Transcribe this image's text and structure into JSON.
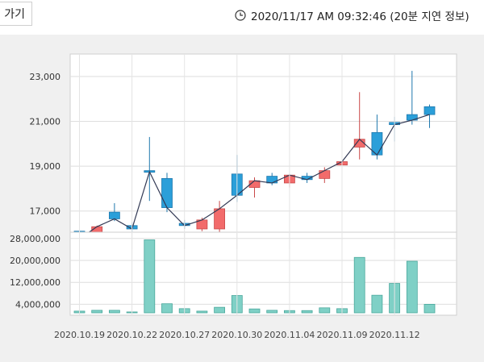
{
  "header": {
    "back_label": "가기",
    "timestamp": "2020/11/17 AM 09:32:46 (20분 지연 정보)"
  },
  "chart_data": [
    {
      "type": "candlestick",
      "title": "",
      "ylim": [
        15300,
        24000
      ],
      "yticks": [
        "17,000",
        "19,000",
        "21,000",
        "23,000"
      ],
      "ytick_values": [
        17000,
        19000,
        21000,
        23000
      ],
      "grid": true,
      "colors": {
        "up": "#f26b6b",
        "down": "#2b9fd9",
        "line": "#333a55"
      },
      "candles": [
        {
          "open": 16100,
          "close": 15750,
          "high": 16250,
          "low": 15500
        },
        {
          "open": 15400,
          "close": 16300,
          "high": 16350,
          "low": 15350
        },
        {
          "open": 16950,
          "close": 16650,
          "high": 17350,
          "low": 16550
        },
        {
          "open": 16350,
          "close": 16200,
          "high": 16500,
          "low": 16000
        },
        {
          "open": 18800,
          "close": 18750,
          "high": 20300,
          "low": 17450
        },
        {
          "open": 18450,
          "close": 17150,
          "high": 18700,
          "low": 16950
        },
        {
          "open": 16450,
          "close": 16350,
          "high": 16600,
          "low": 16200
        },
        {
          "open": 16200,
          "close": 16600,
          "high": 16700,
          "low": 16100
        },
        {
          "open": 16200,
          "close": 17100,
          "high": 17450,
          "low": 16000
        },
        {
          "open": 18650,
          "close": 17700,
          "high": 19500,
          "low": 17400
        },
        {
          "open": 18050,
          "close": 18350,
          "high": 18500,
          "low": 17600
        },
        {
          "open": 18550,
          "close": 18250,
          "high": 18700,
          "low": 18150
        },
        {
          "open": 18250,
          "close": 18600,
          "high": 18650,
          "low": 18050
        },
        {
          "open": 18550,
          "close": 18400,
          "high": 18700,
          "low": 18250
        },
        {
          "open": 18450,
          "close": 18800,
          "high": 18950,
          "low": 18250
        },
        {
          "open": 19050,
          "close": 19200,
          "high": 19350,
          "low": 18950
        },
        {
          "open": 19850,
          "close": 20200,
          "high": 22300,
          "low": 19300
        },
        {
          "open": 20500,
          "close": 19500,
          "high": 21300,
          "low": 19300
        },
        {
          "open": 20950,
          "close": 20850,
          "high": 21200,
          "low": 20100
        },
        {
          "open": 21300,
          "close": 21050,
          "high": 23250,
          "low": 20850
        },
        {
          "open": 21650,
          "close": 21300,
          "high": 21750,
          "low": 20700
        }
      ]
    },
    {
      "type": "bar",
      "title": "",
      "ylim": [
        0,
        30000000
      ],
      "yticks": [
        "4,000,000",
        "12,000,000",
        "20,000,000",
        "28,000,000"
      ],
      "ytick_values": [
        4000000,
        12000000,
        20000000,
        28000000
      ],
      "color": "#7fd0c6",
      "values": [
        1500000,
        1800000,
        1800000,
        1200000,
        27500000,
        4200000,
        2400000,
        1500000,
        2900000,
        7200000,
        2300000,
        1800000,
        1700000,
        1700000,
        2700000,
        2400000,
        21100000,
        7300000,
        11600000,
        19700000,
        4000000
      ]
    }
  ],
  "x_axis_labels": [
    "2020.10.19",
    "2020.10.22",
    "2020.10.27",
    "2020.10.30",
    "2020.11.04",
    "2020.11.09",
    "2020.11.12"
  ]
}
